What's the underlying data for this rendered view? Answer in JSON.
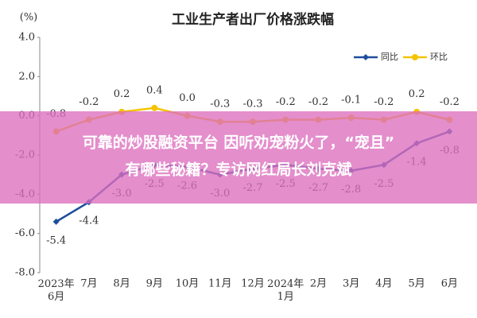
{
  "chart_data": {
    "type": "line",
    "title": "工业生产者出厂价格涨跌幅",
    "y_label": "(%)",
    "categories": [
      "2023年\n6月",
      "7月",
      "8月",
      "9月",
      "10月",
      "11月",
      "12月",
      "2024年\n1月",
      "2月",
      "3月",
      "4月",
      "5月",
      "6月"
    ],
    "series": [
      {
        "name": "同比",
        "color": "#1f4e9c",
        "marker": "diamond",
        "values": [
          -5.4,
          -4.4,
          -3.0,
          -2.5,
          -2.6,
          -3.0,
          -2.7,
          -2.5,
          -2.7,
          -2.8,
          -2.5,
          -1.4,
          -0.8
        ],
        "value_labels": [
          "-5.4",
          "-4.4",
          "-3.0",
          "-2.5",
          "-2.6",
          "-3.0",
          "-2.7",
          "-2.5",
          "-2.7",
          "-2.8",
          "-2.5",
          "-1.4",
          "-0.8"
        ]
      },
      {
        "name": "环比",
        "color": "#f5c400",
        "marker": "circle",
        "values": [
          -0.8,
          -0.2,
          0.2,
          0.4,
          0.0,
          -0.3,
          -0.3,
          -0.2,
          -0.2,
          -0.1,
          -0.2,
          0.2,
          -0.2
        ],
        "value_labels": [
          "-0.8",
          "-0.2",
          "0.2",
          "0.4",
          "0.0",
          "-0.3",
          "-0.3",
          "-0.2",
          "-0.2",
          "-0.1",
          "-0.2",
          "0.2",
          "-0.2"
        ]
      }
    ],
    "ylim": [
      -8,
      4
    ],
    "yticks": [
      {
        "value": 4,
        "label": "4.0"
      },
      {
        "value": 2,
        "label": "2.0"
      },
      {
        "value": 0,
        "label": "0.0"
      },
      {
        "value": -2,
        "label": "-2.0"
      },
      {
        "value": -4,
        "label": "-4.0"
      },
      {
        "value": -6,
        "label": "-6.0"
      },
      {
        "value": -8,
        "label": "-8.0"
      }
    ],
    "grid": false,
    "legend": "top-right"
  },
  "overlay_text": [
    "可靠的炒股融资平台 因听劝宠粉火了，“宠且”",
    "有哪些秘籍？专访网红局长刘克斌"
  ]
}
